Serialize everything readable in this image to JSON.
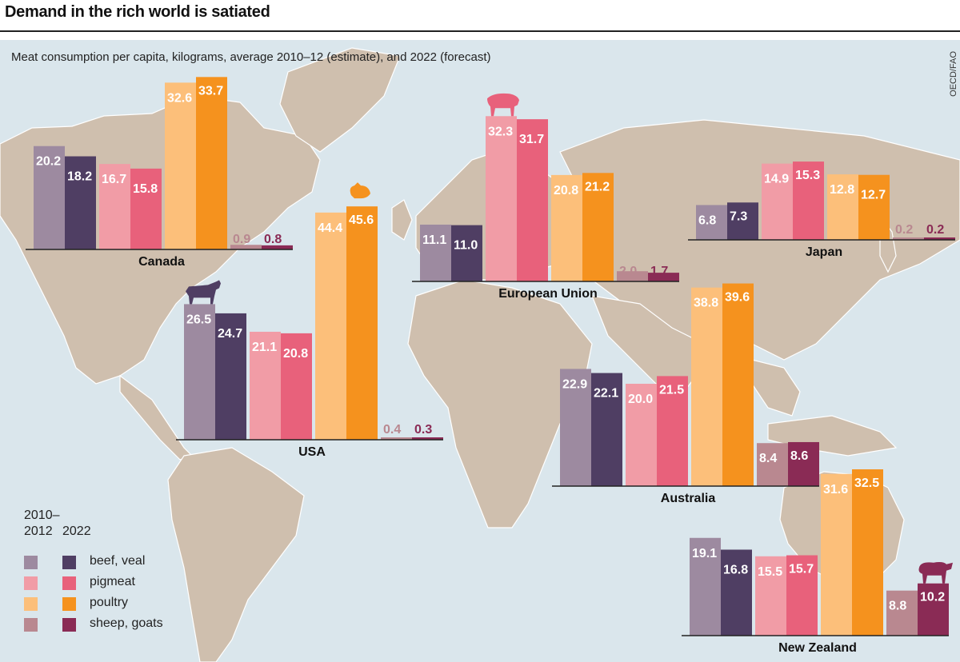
{
  "header": {
    "title": "Demand in the rich world is satiated",
    "subtitle": "Meat consumption per capita, kilograms, average 2010–12 (estimate), and 2022 (forecast)",
    "source": "OECD/FAO"
  },
  "legend": {
    "period_1": "2010–\n2012",
    "period_1_line1": "2010–",
    "period_1_line2": "2012",
    "period_2": "2022",
    "items": [
      {
        "label": "beef, veal",
        "color_2010": "#9d8aa0",
        "color_2022": "#4f3e63"
      },
      {
        "label": "pigmeat",
        "color_2010": "#f19ca6",
        "color_2022": "#e8617b"
      },
      {
        "label": "poultry",
        "color_2010": "#fcbf7a",
        "color_2022": "#f5921e"
      },
      {
        "label": "sheep, goats",
        "color_2010": "#b98890",
        "color_2022": "#8a2b55"
      }
    ]
  },
  "colors": {
    "ocean": "#dae6ec",
    "land": "#cfbfae",
    "land_dark": "#b7a48e",
    "axis": "#222222",
    "label_light": "#ffffff"
  },
  "chart_data": {
    "type": "bar",
    "title": "Demand in the rich world is satiated",
    "subtitle": "Meat consumption per capita, kilograms, average 2010–12 (estimate), and 2022 (forecast)",
    "xlabel": "",
    "ylabel": "kilograms per capita",
    "categories": [
      "beef, veal",
      "pigmeat",
      "poultry",
      "sheep, goats"
    ],
    "series_names": [
      "2010–2012",
      "2022"
    ],
    "grid": false,
    "legend_position": "bottom-left",
    "icons": {
      "USA": "cow (on beef, veal)",
      "European Union": "pig (on pigmeat)",
      "USA_poultry": "chicken (on poultry)",
      "New Zealand": "sheep (on sheep, goats)"
    },
    "countries": [
      {
        "name": "Canada",
        "values_2010_12": [
          20.2,
          16.7,
          32.6,
          0.9
        ],
        "values_2022": [
          18.2,
          15.8,
          33.7,
          0.8
        ]
      },
      {
        "name": "USA",
        "values_2010_12": [
          26.5,
          21.1,
          44.4,
          0.4
        ],
        "values_2022": [
          24.7,
          20.8,
          45.6,
          0.3
        ]
      },
      {
        "name": "European Union",
        "values_2010_12": [
          11.1,
          32.3,
          20.8,
          2.0
        ],
        "values_2022": [
          11.0,
          31.7,
          21.2,
          1.7
        ]
      },
      {
        "name": "Japan",
        "values_2010_12": [
          6.8,
          14.9,
          12.8,
          0.2
        ],
        "values_2022": [
          7.3,
          15.3,
          12.7,
          0.2
        ]
      },
      {
        "name": "Australia",
        "values_2010_12": [
          22.9,
          20.0,
          38.8,
          8.4
        ],
        "values_2022": [
          22.1,
          21.5,
          39.6,
          8.6
        ]
      },
      {
        "name": "New Zealand",
        "values_2010_12": [
          19.1,
          15.5,
          31.6,
          8.8
        ],
        "values_2022": [
          16.8,
          15.7,
          32.5,
          10.2
        ]
      }
    ]
  }
}
